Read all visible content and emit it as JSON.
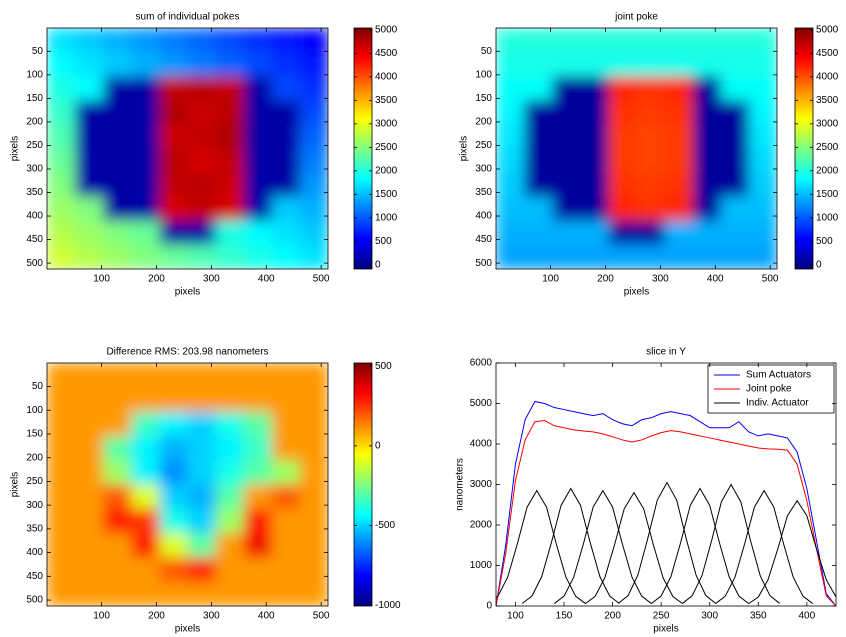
{
  "chart_data": [
    {
      "type": "image",
      "title": "sum of individual pokes",
      "xlabel": "pixels",
      "ylabel": "pixels",
      "xlim": [
        0.5,
        512.5
      ],
      "ylim": [
        0.5,
        512.5
      ],
      "y_reversed": true,
      "xticks": [
        100,
        200,
        300,
        400,
        500
      ],
      "yticks": [
        50,
        100,
        150,
        200,
        250,
        300,
        350,
        400,
        450,
        500
      ],
      "colormap": "jet",
      "clim": [
        -90,
        5040
      ],
      "cticks": [
        0,
        500,
        1000,
        1500,
        2000,
        2500,
        3000,
        3500,
        4000,
        4500,
        5000
      ],
      "z": [
        [
          1700,
          1570,
          1440,
          1310,
          1180,
          1050,
          920,
          790,
          660,
          530
        ],
        [
          1830,
          1700,
          1570,
          1440,
          1310,
          1180,
          1050,
          920,
          790,
          660
        ],
        [
          1960,
          1830,
          100,
          100,
          4700,
          4750,
          4700,
          100,
          920,
          790
        ],
        [
          2090,
          100,
          100,
          100,
          4800,
          4650,
          4750,
          100,
          100,
          920
        ],
        [
          2220,
          100,
          100,
          100,
          4650,
          4700,
          4800,
          100,
          100,
          1050
        ],
        [
          2350,
          100,
          100,
          100,
          4750,
          4600,
          4700,
          100,
          100,
          1180
        ],
        [
          2480,
          100,
          100,
          100,
          4700,
          4750,
          4650,
          100,
          100,
          1310
        ],
        [
          2610,
          2480,
          100,
          100,
          4600,
          4700,
          4600,
          100,
          1570,
          1440
        ],
        [
          2740,
          2610,
          2480,
          2350,
          100,
          100,
          1960,
          1830,
          1700,
          1570
        ],
        [
          2870,
          2740,
          2610,
          2480,
          2350,
          2220,
          2090,
          1960,
          1830,
          1700
        ]
      ]
    },
    {
      "type": "image",
      "title": "joint poke",
      "xlabel": "pixels",
      "ylabel": "pixels",
      "xlim": [
        0.5,
        512.5
      ],
      "ylim": [
        0.5,
        512.5
      ],
      "y_reversed": true,
      "xticks": [
        100,
        200,
        300,
        400,
        500
      ],
      "yticks": [
        50,
        100,
        150,
        200,
        250,
        300,
        350,
        400,
        450,
        500
      ],
      "colormap": "jet",
      "clim": [
        -90,
        5040
      ],
      "cticks": [
        0,
        500,
        1000,
        1500,
        2000,
        2500,
        3000,
        3500,
        4000,
        4500,
        5000
      ],
      "z": [
        [
          2000,
          2000,
          2000,
          2000,
          2000,
          2000,
          2000,
          2000,
          2000,
          2000
        ],
        [
          1930,
          1930,
          1930,
          1930,
          1930,
          1930,
          1930,
          1930,
          1930,
          1930
        ],
        [
          1860,
          1860,
          50,
          50,
          4200,
          4150,
          4200,
          50,
          1860,
          1860
        ],
        [
          1790,
          50,
          50,
          50,
          4150,
          4100,
          4150,
          50,
          50,
          1790
        ],
        [
          1720,
          50,
          50,
          50,
          4100,
          4050,
          4100,
          50,
          50,
          1720
        ],
        [
          1650,
          50,
          50,
          50,
          4100,
          4050,
          4100,
          50,
          50,
          1650
        ],
        [
          1580,
          50,
          50,
          50,
          4150,
          4100,
          4150,
          50,
          50,
          1580
        ],
        [
          1510,
          1510,
          50,
          50,
          4200,
          4150,
          4200,
          50,
          1510,
          1510
        ],
        [
          1440,
          1440,
          1440,
          1440,
          50,
          50,
          1440,
          1440,
          1440,
          1440
        ],
        [
          1370,
          1370,
          1370,
          1370,
          1370,
          1370,
          1370,
          1370,
          1370,
          1370
        ]
      ]
    },
    {
      "type": "image",
      "title": "Difference RMS: 203.98 nanometers",
      "xlabel": "pixels",
      "ylabel": "pixels",
      "xlim": [
        0.5,
        512.5
      ],
      "ylim": [
        0.5,
        512.5
      ],
      "y_reversed": true,
      "xticks": [
        100,
        200,
        300,
        400,
        500
      ],
      "yticks": [
        50,
        100,
        150,
        200,
        250,
        300,
        350,
        400,
        450,
        500
      ],
      "colormap": "jet",
      "clim": [
        -1005,
        520
      ],
      "cticks": [
        -1000,
        -500,
        0,
        500
      ],
      "z": [
        [
          100,
          100,
          100,
          100,
          100,
          100,
          100,
          100,
          100,
          100
        ],
        [
          100,
          100,
          100,
          100,
          100,
          100,
          100,
          100,
          100,
          100
        ],
        [
          100,
          100,
          100,
          -350,
          -450,
          -500,
          -400,
          -300,
          100,
          100
        ],
        [
          100,
          100,
          -300,
          -450,
          -550,
          -500,
          -450,
          -350,
          100,
          100
        ],
        [
          100,
          100,
          -200,
          -450,
          -600,
          -500,
          -400,
          -300,
          -200,
          100
        ],
        [
          100,
          100,
          200,
          -100,
          -500,
          -550,
          -300,
          100,
          200,
          100
        ],
        [
          100,
          100,
          300,
          250,
          -400,
          -500,
          -200,
          300,
          100,
          100
        ],
        [
          100,
          100,
          100,
          300,
          -100,
          -300,
          100,
          350,
          100,
          100
        ],
        [
          100,
          100,
          100,
          100,
          200,
          300,
          100,
          100,
          100,
          100
        ],
        [
          100,
          100,
          100,
          100,
          100,
          100,
          100,
          100,
          100,
          100
        ]
      ]
    },
    {
      "type": "line",
      "title": "slice in Y",
      "xlabel": "pixels",
      "ylabel": "nanometers",
      "xlim": [
        80,
        430
      ],
      "ylim": [
        0,
        6000
      ],
      "xticks": [
        100,
        150,
        200,
        250,
        300,
        350,
        400
      ],
      "yticks": [
        0,
        1000,
        2000,
        3000,
        4000,
        5000,
        6000
      ],
      "legend": "upper right",
      "series": [
        {
          "name": "Sum Actuators",
          "color": "#0000ff",
          "x": [
            80,
            90,
            100,
            110,
            120,
            130,
            140,
            150,
            160,
            170,
            180,
            190,
            200,
            210,
            220,
            230,
            240,
            250,
            260,
            270,
            280,
            290,
            300,
            310,
            320,
            330,
            340,
            350,
            360,
            370,
            380,
            390,
            400,
            410,
            420,
            430
          ],
          "values": [
            0,
            1500,
            3500,
            4600,
            5050,
            5000,
            4900,
            4850,
            4800,
            4750,
            4700,
            4750,
            4600,
            4500,
            4450,
            4600,
            4650,
            4750,
            4800,
            4750,
            4700,
            4550,
            4400,
            4400,
            4400,
            4550,
            4300,
            4200,
            4250,
            4200,
            4150,
            3800,
            2900,
            1600,
            300,
            0
          ]
        },
        {
          "name": "Joint poke",
          "color": "#ff0000",
          "x": [
            80,
            90,
            100,
            110,
            120,
            130,
            140,
            150,
            160,
            170,
            180,
            190,
            200,
            210,
            220,
            230,
            240,
            250,
            260,
            270,
            280,
            290,
            300,
            310,
            320,
            330,
            340,
            350,
            360,
            370,
            380,
            390,
            400,
            410,
            420,
            430
          ],
          "values": [
            0,
            1300,
            3100,
            4100,
            4550,
            4580,
            4450,
            4400,
            4350,
            4320,
            4300,
            4250,
            4180,
            4100,
            4050,
            4100,
            4200,
            4280,
            4330,
            4300,
            4250,
            4200,
            4150,
            4100,
            4050,
            4000,
            3950,
            3900,
            3880,
            3870,
            3850,
            3500,
            2600,
            1400,
            250,
            0
          ]
        },
        {
          "name": "Indiv. Actuator",
          "color": "#000000",
          "x": [
            72,
            82,
            92,
            102,
            112,
            122,
            132,
            142,
            152,
            162,
            172
          ],
          "values": [
            60,
            242,
            710,
            1536,
            2442,
            2850,
            2442,
            1536,
            710,
            242,
            60
          ]
        },
        {
          "color": "#000000",
          "x": [
            107,
            117,
            127,
            137,
            147,
            157,
            167,
            177,
            187,
            197,
            207
          ],
          "values": [
            61,
            247,
            722,
            1563,
            2485,
            2900,
            2485,
            1563,
            722,
            247,
            61
          ]
        },
        {
          "color": "#000000",
          "x": [
            140,
            150,
            160,
            170,
            180,
            190,
            200,
            210,
            220,
            230,
            240
          ],
          "values": [
            60,
            242,
            710,
            1536,
            2442,
            2850,
            2442,
            1536,
            710,
            242,
            60
          ]
        },
        {
          "color": "#000000",
          "x": [
            172,
            182,
            192,
            202,
            212,
            222,
            232,
            242,
            252,
            262,
            272
          ],
          "values": [
            59,
            238,
            697,
            1509,
            2400,
            2800,
            2400,
            1509,
            697,
            238,
            59
          ]
        },
        {
          "color": "#000000",
          "x": [
            206,
            216,
            226,
            236,
            246,
            256,
            266,
            276,
            286,
            296,
            306
          ],
          "values": [
            64,
            259,
            759,
            1644,
            2614,
            3050,
            2614,
            1644,
            759,
            259,
            64
          ]
        },
        {
          "color": "#000000",
          "x": [
            240,
            250,
            260,
            270,
            280,
            290,
            300,
            310,
            320,
            330,
            340
          ],
          "values": [
            61,
            247,
            722,
            1563,
            2485,
            2900,
            2485,
            1563,
            722,
            247,
            61
          ]
        },
        {
          "color": "#000000",
          "x": [
            272,
            282,
            292,
            302,
            312,
            322,
            332,
            342,
            352,
            362,
            372
          ],
          "values": [
            63,
            255,
            747,
            1617,
            2571,
            3000,
            2571,
            1617,
            747,
            255,
            63
          ]
        },
        {
          "color": "#000000",
          "x": [
            306,
            316,
            326,
            336,
            346,
            356,
            366,
            376,
            386,
            396,
            406
          ],
          "values": [
            60,
            242,
            710,
            1536,
            2442,
            2850,
            2442,
            1536,
            710,
            242,
            60
          ]
        },
        {
          "color": "#000000",
          "x": [
            340,
            350,
            360,
            370,
            380,
            390,
            400,
            410,
            420,
            430,
            440
          ],
          "values": [
            55,
            221,
            647,
            1401,
            2228,
            2600,
            2228,
            1401,
            647,
            221,
            55
          ]
        }
      ]
    }
  ]
}
